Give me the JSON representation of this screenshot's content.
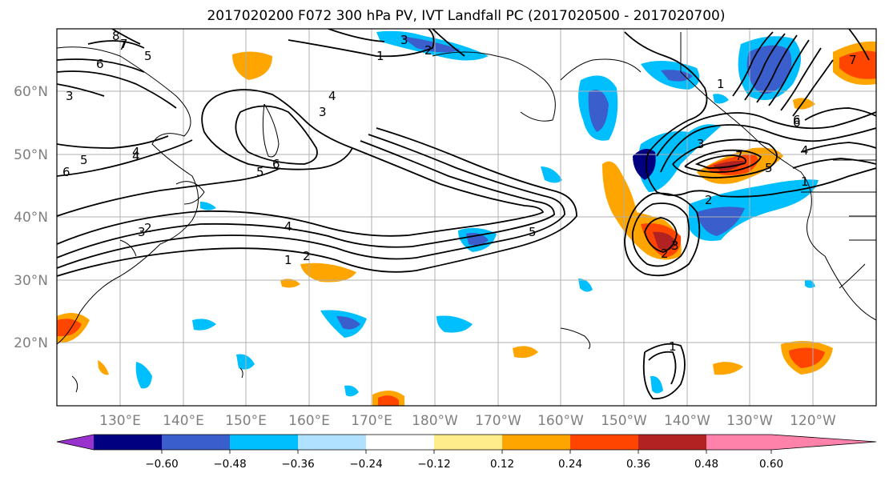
{
  "title": "2017020200 F072 300 hPa PV, IVT Landfall PC (2017020500 - 2017020700)",
  "lat_labels": [
    "60°N",
    "50°N",
    "40°N",
    "30°N",
    "20°N"
  ],
  "lon_labels": [
    "130°E",
    "140°E",
    "150°E",
    "160°E",
    "170°E",
    "180°W",
    "170°W",
    "160°W",
    "150°W",
    "140°W",
    "130°W",
    "120°W"
  ],
  "colorbar": {
    "tick_labels": [
      "−0.60",
      "−0.48",
      "−0.36",
      "−0.24",
      "−0.12",
      "0.12",
      "0.24",
      "0.36",
      "0.48",
      "0.60"
    ],
    "colors": [
      "#9932cc",
      "#000080",
      "#3a5fcd",
      "#00bfff",
      "#b0e2ff",
      "#ffffff",
      "#ffec8b",
      "#ffa500",
      "#ff4500",
      "#b22222",
      "#ff82ab"
    ]
  },
  "contour_labels": [
    "1",
    "2",
    "3",
    "4",
    "5",
    "6",
    "7",
    "8",
    "1",
    "2",
    "3",
    "4",
    "5",
    "6",
    "7",
    "1",
    "2",
    "3",
    "4",
    "5",
    "6",
    "7",
    "1",
    "2",
    "3",
    "4",
    "5",
    "6",
    "3",
    "4",
    "5",
    "6",
    "7",
    "1",
    "2",
    "3"
  ],
  "colors": {
    "map_border": "#000000",
    "grid": "#b0b0b0",
    "contour": "#000000",
    "coast": "#000000"
  }
}
